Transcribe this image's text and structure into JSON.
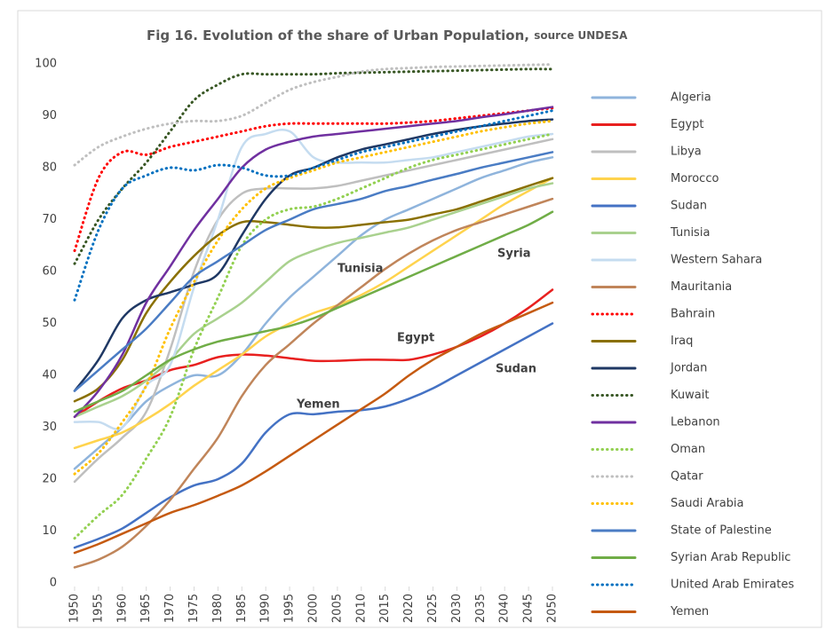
{
  "chart_data": {
    "type": "line",
    "title": "Fig 16. Evolution of the share of Urban Population,",
    "source": "source UNDESA",
    "x": [
      1950,
      1955,
      1960,
      1965,
      1970,
      1975,
      1980,
      1985,
      1990,
      1995,
      2000,
      2005,
      2010,
      2015,
      2020,
      2025,
      2030,
      2035,
      2040,
      2045,
      2050
    ],
    "xlim": [
      1950,
      2050
    ],
    "xticks": [
      1950,
      1955,
      1960,
      1965,
      1970,
      1975,
      1980,
      1985,
      1990,
      1995,
      2000,
      2005,
      2010,
      2015,
      2020,
      2025,
      2030,
      2035,
      2040,
      2045,
      2050
    ],
    "ylim": [
      0,
      100
    ],
    "yticks": [
      0,
      10,
      20,
      30,
      40,
      50,
      60,
      70,
      80,
      90,
      100
    ],
    "annotations": [
      "Tunisia",
      "Syria",
      "Egypt",
      "Sudan",
      "Yemen"
    ],
    "series": [
      {
        "name": "Algeria",
        "color": "#8fb4dc",
        "style": "solid",
        "values": [
          22,
          26,
          30,
          35,
          38,
          40,
          40,
          44,
          50,
          55,
          59,
          63,
          67,
          70,
          72,
          74,
          76,
          78,
          79.5,
          81,
          82
        ]
      },
      {
        "name": "Egypt",
        "color": "#e8201f",
        "style": "solid",
        "values": [
          32,
          35,
          37.5,
          39,
          41,
          42,
          43.5,
          44,
          43.8,
          43.3,
          42.8,
          42.8,
          43,
          43,
          43,
          44,
          45.5,
          47.5,
          50,
          53,
          56.5
        ]
      },
      {
        "name": "Libya",
        "color": "#bfbfbf",
        "style": "solid",
        "values": [
          19.5,
          24,
          28,
          33,
          45,
          60,
          70,
          75,
          76,
          76,
          76,
          76.5,
          77.5,
          78.5,
          79.5,
          80.5,
          81.5,
          82.5,
          83.5,
          84.5,
          85.5
        ]
      },
      {
        "name": "Morocco",
        "color": "#ffd34d",
        "style": "solid",
        "values": [
          26,
          27.5,
          29,
          31.5,
          34.5,
          38,
          41,
          44,
          47.5,
          50,
          52,
          53.5,
          55.5,
          58,
          61,
          64,
          67,
          70,
          73,
          75.5,
          78
        ]
      },
      {
        "name": "Sudan",
        "color": "#4472c4",
        "style": "solid",
        "values": [
          6.8,
          8.5,
          10.5,
          13.5,
          16.5,
          18.8,
          20,
          23,
          29,
          32.5,
          32.5,
          33,
          33.3,
          34,
          35.5,
          37.5,
          40,
          42.5,
          45,
          47.5,
          50
        ]
      },
      {
        "name": "Tunisia",
        "color": "#a9d18e",
        "style": "solid",
        "values": [
          32,
          34,
          36,
          39,
          43,
          48,
          51,
          54,
          58,
          62,
          64,
          65.5,
          66.5,
          67.5,
          68.5,
          70,
          71.5,
          73,
          74.5,
          76,
          77
        ]
      },
      {
        "name": "Western Sahara",
        "color": "#c5dcf0",
        "style": "solid",
        "values": [
          31,
          31,
          30,
          38,
          42,
          57,
          70,
          84,
          86.5,
          87,
          82,
          81,
          81,
          81,
          81.5,
          82,
          83,
          84,
          85,
          86,
          86.5
        ]
      },
      {
        "name": "Mauritania",
        "color": "#c0855a",
        "style": "solid",
        "values": [
          3,
          4.5,
          7,
          11,
          16,
          22,
          28,
          36,
          42,
          46,
          50,
          53.5,
          57,
          60.5,
          63.5,
          66,
          68,
          69.5,
          71,
          72.5,
          74
        ]
      },
      {
        "name": "Bahrain",
        "color": "#ff0000",
        "style": "dotted",
        "values": [
          64,
          78,
          83,
          82.5,
          84,
          85,
          86,
          87,
          88,
          88.5,
          88.5,
          88.5,
          88.5,
          88.5,
          88.7,
          89,
          89.5,
          90,
          90.5,
          91,
          91.5
        ]
      },
      {
        "name": "Iraq",
        "color": "#8a7000",
        "style": "solid",
        "values": [
          35,
          37.5,
          43,
          52,
          58,
          63,
          67,
          69.5,
          69.5,
          69,
          68.5,
          68.5,
          69,
          69.5,
          70,
          71,
          72,
          73.5,
          75,
          76.5,
          78
        ]
      },
      {
        "name": "Jordan",
        "color": "#1f3864",
        "style": "solid",
        "values": [
          37,
          43,
          51,
          54.5,
          56,
          57.5,
          59.5,
          67,
          74,
          78.5,
          80,
          82,
          83.5,
          84.5,
          85.5,
          86.5,
          87.3,
          88,
          88.5,
          89,
          89.3
        ]
      },
      {
        "name": "Kuwait",
        "color": "#375623",
        "style": "dotted",
        "values": [
          61.5,
          70,
          76,
          81,
          87,
          93,
          96,
          98,
          98,
          98,
          98,
          98.2,
          98.3,
          98.4,
          98.5,
          98.6,
          98.7,
          98.8,
          98.9,
          99,
          99
        ]
      },
      {
        "name": "Lebanon",
        "color": "#7030a0",
        "style": "solid",
        "values": [
          32,
          37,
          44,
          54,
          61,
          68,
          74,
          80,
          83.5,
          85,
          86,
          86.5,
          87,
          87.5,
          88,
          88.5,
          89,
          89.7,
          90.3,
          91,
          91.7
        ]
      },
      {
        "name": "Oman",
        "color": "#92d050",
        "style": "dotted",
        "values": [
          8.6,
          13,
          17,
          24,
          32,
          45,
          55,
          65,
          70,
          72,
          72.5,
          74,
          76,
          78,
          80,
          81.5,
          82.5,
          83.5,
          84.5,
          85.5,
          86.5
        ]
      },
      {
        "name": "Qatar",
        "color": "#bfbfbf",
        "style": "dotted",
        "values": [
          80.5,
          84,
          86,
          87.5,
          88.5,
          89,
          89,
          90,
          92.5,
          95,
          96.5,
          97.5,
          98.5,
          99,
          99.2,
          99.4,
          99.5,
          99.6,
          99.7,
          99.8,
          99.9
        ]
      },
      {
        "name": "Saudi Arabia",
        "color": "#ffc000",
        "style": "dotted",
        "values": [
          21,
          25,
          31,
          38,
          49,
          58,
          66,
          72,
          76,
          78,
          79.5,
          81,
          82,
          83,
          84,
          85,
          86,
          87,
          87.8,
          88.5,
          89
        ]
      },
      {
        "name": "State of Palestine",
        "color": "#4a7cc4",
        "style": "solid",
        "values": [
          37,
          41,
          45,
          49,
          54,
          59,
          62,
          65,
          68,
          70,
          72,
          73,
          74,
          75.5,
          76.5,
          77.7,
          78.8,
          80,
          81,
          82,
          83
        ]
      },
      {
        "name": "Syrian Arab Republic",
        "color": "#70ad47",
        "style": "solid",
        "values": [
          33,
          35,
          37,
          40,
          43,
          45,
          46.5,
          47.5,
          48.5,
          49.5,
          51,
          53,
          55,
          57,
          59,
          61,
          63,
          65,
          67,
          69,
          71.5
        ]
      },
      {
        "name": "United Arab Emirates",
        "color": "#0070c0",
        "style": "dotted",
        "values": [
          54.5,
          68,
          76,
          78.5,
          80,
          79.5,
          80.5,
          80,
          78.5,
          78.5,
          80,
          81.5,
          83,
          84,
          85,
          86,
          87,
          88,
          89,
          90,
          91
        ]
      },
      {
        "name": "Yemen",
        "color": "#c55a11",
        "style": "solid",
        "values": [
          5.8,
          7.5,
          9.5,
          11.5,
          13.5,
          15,
          16.8,
          18.8,
          21.5,
          24.5,
          27.5,
          30.5,
          33.5,
          36.5,
          40,
          43,
          45.5,
          48,
          50,
          52,
          54
        ]
      }
    ]
  }
}
